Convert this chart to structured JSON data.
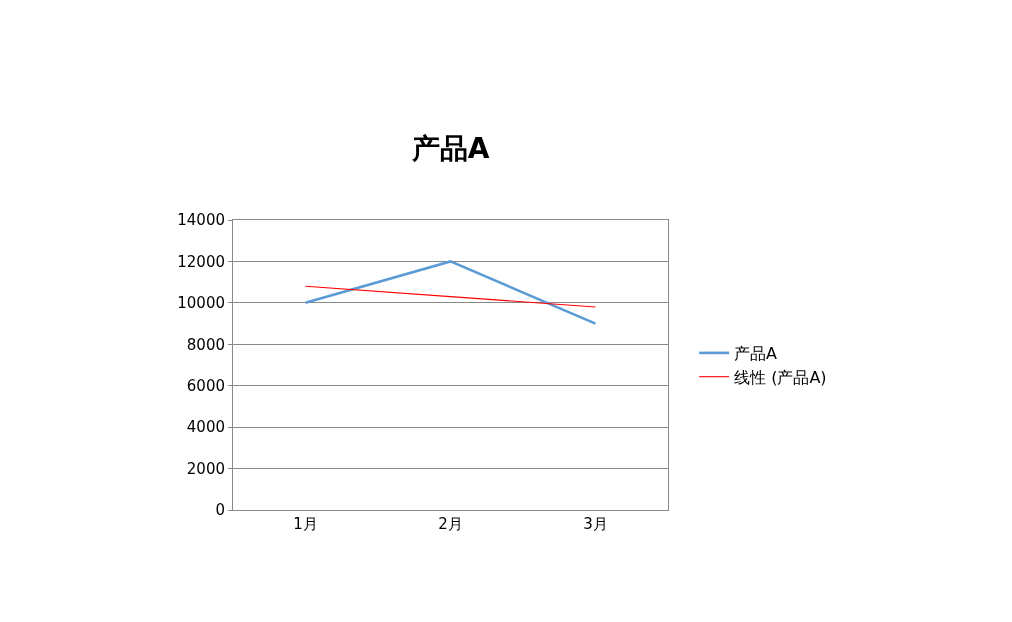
{
  "chart_data": {
    "type": "line",
    "title": "产品A",
    "categories": [
      "1月",
      "2月",
      "3月"
    ],
    "series": [
      {
        "name": "产品A",
        "color": "#5b9bd5",
        "values": [
          10000,
          12000,
          9000
        ]
      },
      {
        "name": "线性 (产品A)",
        "color": "#ff0000",
        "values": [
          10800,
          10300,
          9800
        ]
      }
    ],
    "ylim": [
      0,
      14000
    ],
    "yticks": [
      0,
      2000,
      4000,
      6000,
      8000,
      10000,
      12000,
      14000
    ],
    "grid": "y",
    "legend": "right",
    "marker": "none",
    "line_style": "solid"
  }
}
